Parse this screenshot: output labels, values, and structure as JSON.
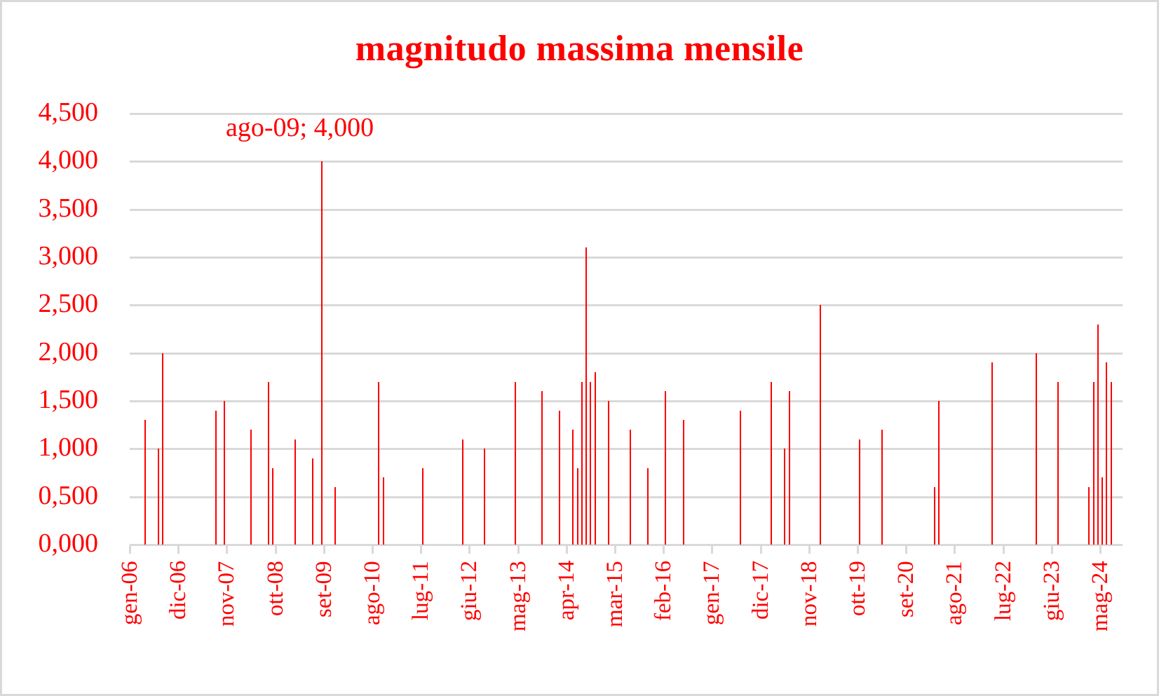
{
  "chart_data": {
    "type": "bar",
    "title": "magnitudo massima mensile",
    "xlabel": "",
    "ylabel": "",
    "ylim": [
      0,
      4.5
    ],
    "y_ticks": [
      "0,000",
      "0,500",
      "1,000",
      "1,500",
      "2,000",
      "2,500",
      "3,000",
      "3,500",
      "4,000",
      "4,500"
    ],
    "x_tick_labels": [
      "gen-06",
      "dic-06",
      "nov-07",
      "ott-08",
      "set-09",
      "ago-10",
      "lug-11",
      "giu-12",
      "mag-13",
      "apr-14",
      "mar-15",
      "feb-16",
      "gen-17",
      "dic-17",
      "nov-18",
      "ott-19",
      "set-20",
      "ago-21",
      "lug-22",
      "giu-23",
      "mag-24"
    ],
    "x_range": [
      "gen-06",
      "set-24"
    ],
    "grid": true,
    "legend": null,
    "annotations": [
      {
        "label": "ago-09; 4,000",
        "category": "ago-09",
        "value": 4.0
      }
    ],
    "categories": [
      "apr-06",
      "lug-06",
      "ago-06",
      "ago-07",
      "ott-07",
      "apr-08",
      "ago-08",
      "set-08",
      "feb-09",
      "giu-09",
      "ago-09",
      "nov-09",
      "set-10",
      "ott-10",
      "lug-11",
      "apr-12",
      "set-12",
      "apr-13",
      "ott-13",
      "feb-14",
      "mag-14",
      "giu-14",
      "lug-14",
      "ago-14",
      "set-14",
      "ott-14",
      "gen-15",
      "giu-15",
      "ott-15",
      "feb-16",
      "giu-16",
      "lug-17",
      "feb-18",
      "mag-18",
      "giu-18",
      "gen-19",
      "ott-19",
      "mar-20",
      "mar-21",
      "apr-21",
      "apr-22",
      "feb-23",
      "lug-23",
      "feb-24",
      "mar-24",
      "apr-24",
      "mag-24",
      "giu-24",
      "lug-24"
    ],
    "month_index": [
      3,
      6,
      7,
      19,
      21,
      27,
      31,
      32,
      37,
      41,
      43,
      46,
      56,
      57,
      66,
      75,
      80,
      87,
      93,
      97,
      100,
      101,
      102,
      103,
      104,
      105,
      108,
      113,
      117,
      121,
      125,
      138,
      145,
      148,
      149,
      156,
      165,
      170,
      182,
      183,
      195,
      205,
      210,
      217,
      218,
      219,
      220,
      221,
      222
    ],
    "values": [
      1.3,
      1.0,
      2.0,
      1.4,
      1.5,
      1.2,
      1.7,
      0.8,
      1.1,
      0.9,
      4.0,
      0.6,
      1.7,
      0.7,
      0.8,
      1.1,
      1.0,
      1.7,
      1.6,
      1.4,
      1.2,
      0.8,
      1.7,
      3.1,
      1.7,
      1.8,
      1.5,
      1.2,
      0.8,
      1.6,
      1.3,
      1.4,
      1.7,
      1.0,
      1.6,
      2.5,
      1.1,
      1.2,
      0.6,
      1.5,
      1.9,
      2.0,
      1.7,
      0.6,
      1.7,
      2.3,
      0.7,
      1.9,
      1.7
    ],
    "colors": {
      "series": "#ff0000",
      "text": "#ff0000",
      "grid": "#d9d9d9"
    }
  }
}
